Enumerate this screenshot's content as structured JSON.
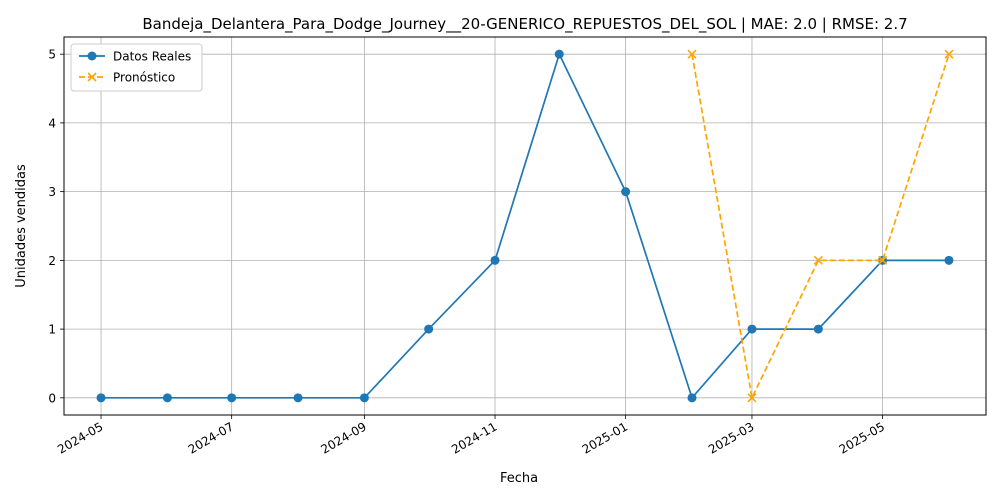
{
  "chart_data": {
    "type": "line",
    "title": "Bandeja_Delantera_Para_Dodge_Journey__20-GENERICO_REPUESTOS_DEL_SOL | MAE: 2.0 | RMSE: 2.7",
    "xlabel": "Fecha",
    "ylabel": "Unidades vendidas",
    "ylim": [
      -0.25,
      5.25
    ],
    "grid": true,
    "legend_position": "top-left",
    "x_ticks": [
      "2024-05",
      "2024-07",
      "2024-09",
      "2024-11",
      "2025-01",
      "2025-03",
      "2025-05"
    ],
    "y_ticks": [
      "0",
      "1",
      "2",
      "3",
      "4",
      "5"
    ],
    "series": [
      {
        "name": "Datos Reales",
        "color": "#1f77b4",
        "style": "solid",
        "marker": "circle",
        "x": [
          "2024-05-01",
          "2024-06-01",
          "2024-07-01",
          "2024-08-01",
          "2024-09-01",
          "2024-10-01",
          "2024-11-01",
          "2024-12-01",
          "2025-01-01",
          "2025-02-01",
          "2025-03-01",
          "2025-04-01",
          "2025-05-01",
          "2025-06-01"
        ],
        "values": [
          0,
          0,
          0,
          0,
          0,
          1,
          2,
          5,
          3,
          0,
          1,
          1,
          2,
          2
        ]
      },
      {
        "name": "Pronóstico",
        "color": "#ffa500",
        "style": "dashed",
        "marker": "x",
        "x": [
          "2025-02-01",
          "2025-03-01",
          "2025-04-01",
          "2025-05-01",
          "2025-06-01"
        ],
        "values": [
          5,
          0,
          2,
          2,
          5
        ]
      }
    ]
  }
}
